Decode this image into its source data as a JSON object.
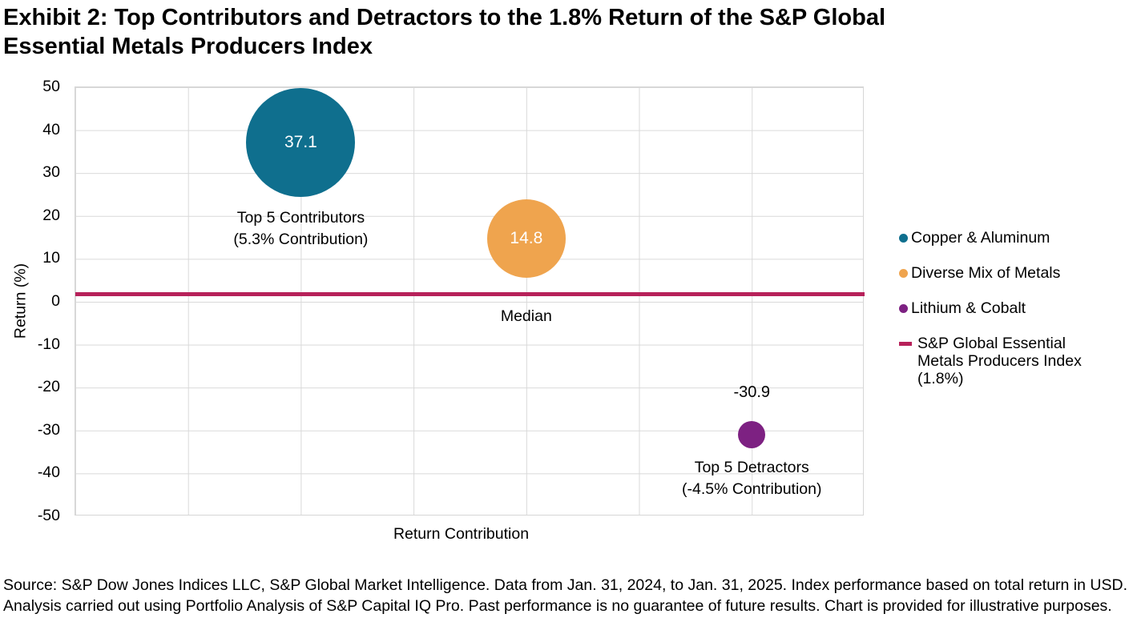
{
  "page": {
    "title": "Exhibit 2: Top Contributors and Detractors to the 1.8% Return of the S&P Global Essential Metals Producers Index",
    "footer": "Source: S&P Dow Jones Indices LLC, S&P Global Market Intelligence. Data from Jan. 31, 2024, to Jan. 31, 2025. Index performance based on total return in USD. Analysis carried out using Portfolio Analysis of S&P Capital IQ Pro. Past performance is no guarantee of future results. Chart is provided for illustrative purposes."
  },
  "chart_data": {
    "type": "scatter",
    "title": "Exhibit 2: Top Contributors and Detractors to the 1.8% Return of the S&P Global Essential Metals Producers Index",
    "xlabel": "Return Contribution",
    "ylabel": "Return (%)",
    "ylim": [
      -50,
      50
    ],
    "yticks": [
      50,
      40,
      30,
      20,
      10,
      0,
      -10,
      -20,
      -30,
      -40,
      -50
    ],
    "grid": true,
    "legend_position": "right",
    "series": [
      {
        "name": "Copper & Aluminum",
        "x_frac": 0.2857,
        "y": 37.1,
        "value_label": "37.1",
        "label_position": "inside",
        "radius_px": 68,
        "color": "#0f6f8e",
        "annotation_lines": [
          "Top 5 Contributors",
          "(5.3% Contribution)"
        ],
        "annotation_dy": 13
      },
      {
        "name": "Diverse Mix of Metals",
        "x_frac": 0.5714,
        "y": 14.8,
        "value_label": "14.8",
        "label_position": "inside",
        "radius_px": 49,
        "color": "#efa44e",
        "annotation_lines": [
          "Median"
        ],
        "annotation_dy": 35
      },
      {
        "name": "Lithium & Cobalt",
        "x_frac": 0.8571,
        "y": -30.9,
        "value_label": "-30.9",
        "label_position": "above",
        "radius_px": 17,
        "color": "#7d2182",
        "annotation_lines": [
          "Top 5 Detractors",
          "(-4.5% Contribution)"
        ],
        "annotation_dy": 11
      }
    ],
    "reference_line": {
      "y": 1.8,
      "color": "#b7215a",
      "label": "S&P Global Essential Metals Producers Index (1.8%)"
    }
  },
  "legend": {
    "items": [
      {
        "label": "Copper & Aluminum",
        "marker": "dot",
        "color": "#0f6f8e"
      },
      {
        "label": "Diverse Mix of Metals",
        "marker": "dot",
        "color": "#efa44e"
      },
      {
        "label": "Lithium & Cobalt",
        "marker": "dot",
        "color": "#7d2182"
      },
      {
        "label": "S&P Global Essential Metals Producers Index (1.8%)",
        "marker": "dash",
        "color": "#b7215a"
      }
    ]
  }
}
